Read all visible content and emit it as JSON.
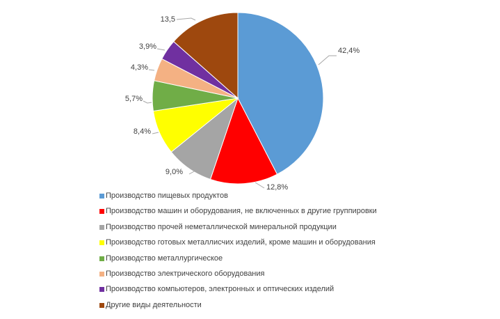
{
  "chart_data": {
    "type": "pie",
    "title": "",
    "labels": [
      "Производство пищевых продуктов",
      "Производство машин и оборудования, не включенных в другие группировки",
      "Производство прочей неметаллической минеральной продукции",
      "Производство готовых металлисчих изделий, кроме машин и оборудования",
      "Производство металлургическое",
      "Производство электрического оборудования",
      "Производство компьютеров, электронных и оптических изделий",
      "Другие виды деятельности"
    ],
    "values": [
      42.4,
      12.8,
      9.0,
      8.4,
      5.7,
      4.3,
      3.9,
      13.5
    ],
    "data_labels": [
      "42,4%",
      "12,8%",
      "9,0%",
      "8,4%",
      "5,7%",
      "4,3%",
      "3,9%",
      "13,5"
    ],
    "colors": [
      "#5B9BD5",
      "#FF0000",
      "#A5A5A5",
      "#FFFF00",
      "#70AD47",
      "#F4B183",
      "#7030A0",
      "#9E480E"
    ],
    "legend_position": "bottom"
  }
}
